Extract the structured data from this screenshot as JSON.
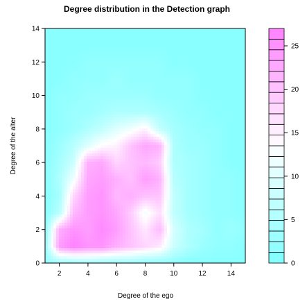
{
  "chart_data": {
    "type": "heatmap",
    "title": "Degree distribution in the Detection graph",
    "xlabel": "Degree of the ego",
    "ylabel": "Degree of the alter",
    "xlim": [
      1,
      15
    ],
    "ylim": [
      0,
      14
    ],
    "x_ticks": [
      2,
      4,
      6,
      8,
      10,
      12,
      14
    ],
    "y_ticks": [
      0,
      2,
      4,
      6,
      8,
      10,
      12,
      14
    ],
    "colorkey": {
      "range": [
        0,
        27
      ],
      "ticks": [
        0,
        5,
        10,
        15,
        20,
        25
      ],
      "low_color": "#80ffff",
      "mid_color": "#ffffff",
      "high_color": "#ff80ff",
      "mid_value": 13.5,
      "levels": 22
    },
    "grid_y": [
      0,
      1,
      2,
      3,
      4,
      5,
      6,
      7,
      8,
      9,
      10,
      11,
      12,
      13,
      14
    ],
    "grid_x": [
      1,
      2,
      3,
      4,
      5,
      6,
      7,
      8,
      9,
      10,
      11,
      12,
      13,
      14,
      15
    ],
    "z": [
      [
        2,
        3,
        3,
        4,
        3,
        3,
        3,
        2,
        2,
        2,
        1,
        1,
        1,
        1,
        1
      ],
      [
        2,
        24,
        27,
        25,
        25,
        22,
        20,
        18,
        16,
        8,
        5,
        3,
        2,
        2,
        1
      ],
      [
        1,
        22,
        25,
        24,
        26,
        24,
        20,
        16,
        21,
        9,
        5,
        4,
        2,
        3,
        2
      ],
      [
        1,
        6,
        21,
        24,
        25,
        23,
        19,
        12,
        17,
        7,
        4,
        3,
        2,
        2,
        1
      ],
      [
        1,
        4,
        18,
        24,
        25,
        21,
        22,
        20,
        20,
        7,
        4,
        3,
        2,
        2,
        1
      ],
      [
        1,
        5,
        12,
        23,
        24,
        22,
        20,
        24,
        22,
        6,
        4,
        3,
        2,
        2,
        1
      ],
      [
        1,
        4,
        8,
        22,
        23,
        18,
        20,
        21,
        19,
        5,
        4,
        3,
        2,
        1,
        1
      ],
      [
        1,
        3,
        6,
        10,
        14,
        15,
        20,
        23,
        22,
        5,
        3,
        3,
        2,
        1,
        1
      ],
      [
        1,
        2,
        3,
        5,
        7,
        10,
        12,
        15,
        7,
        4,
        3,
        2,
        2,
        1,
        1
      ],
      [
        1,
        2,
        3,
        3,
        4,
        5,
        5,
        5,
        4,
        3,
        2,
        2,
        1,
        1,
        1
      ],
      [
        1,
        2,
        2,
        3,
        3,
        3,
        3,
        3,
        2,
        2,
        2,
        1,
        1,
        1,
        1
      ],
      [
        1,
        1,
        2,
        2,
        2,
        3,
        2,
        2,
        2,
        2,
        2,
        1,
        1,
        1,
        1
      ],
      [
        1,
        1,
        1,
        2,
        2,
        2,
        2,
        2,
        2,
        1,
        1,
        1,
        1,
        1,
        1
      ],
      [
        1,
        1,
        1,
        1,
        1,
        1,
        1,
        1,
        1,
        1,
        1,
        1,
        1,
        1,
        1
      ],
      [
        1,
        1,
        1,
        1,
        1,
        1,
        1,
        1,
        1,
        1,
        1,
        1,
        1,
        1,
        1
      ]
    ]
  }
}
